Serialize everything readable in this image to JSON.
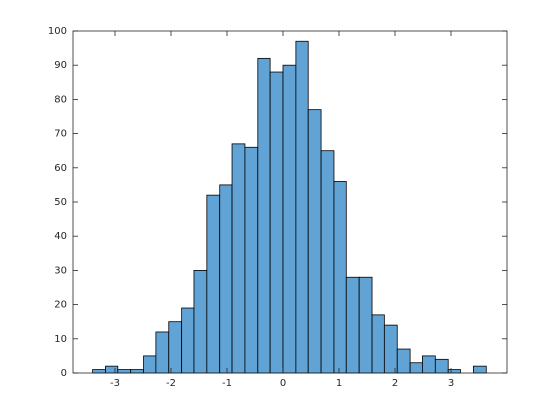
{
  "chart_data": {
    "type": "histogram",
    "bins": [
      -3.4,
      -3.17,
      -2.95,
      -2.72,
      -2.49,
      -2.27,
      -2.04,
      -1.81,
      -1.59,
      -1.36,
      -1.13,
      -0.91,
      -0.68,
      -0.45,
      -0.23,
      0,
      0.23,
      0.45,
      0.68,
      0.91,
      1.13,
      1.36,
      1.59,
      1.81,
      2.04,
      2.27,
      2.49,
      2.72,
      2.95,
      3.17,
      3.4,
      3.63
    ],
    "values": [
      1,
      2,
      1,
      1,
      5,
      12,
      15,
      19,
      30,
      52,
      55,
      67,
      66,
      92,
      88,
      90,
      97,
      77,
      65,
      56,
      28,
      28,
      17,
      14,
      7,
      3,
      5,
      4,
      1,
      0,
      2
    ],
    "color": "#61a3d5",
    "xlim": [
      -3.75,
      4
    ],
    "xticks": [
      -3,
      -2,
      -1,
      0,
      1,
      2,
      3
    ],
    "ylim": [
      0,
      100
    ],
    "yticks": [
      0,
      10,
      20,
      30,
      40,
      50,
      60,
      70,
      80,
      90,
      100
    ]
  }
}
